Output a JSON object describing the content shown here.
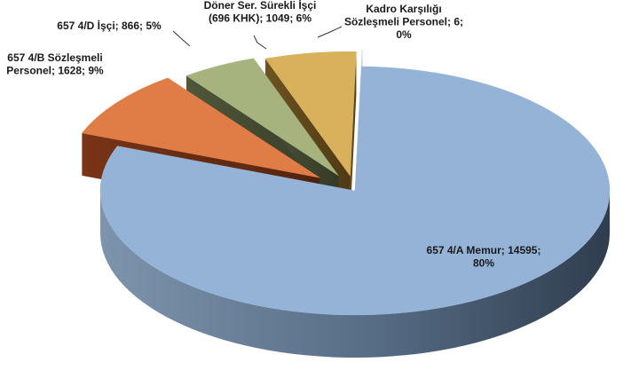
{
  "chart_data": {
    "type": "pie",
    "style": "3d-exploded",
    "legend": "none",
    "slices": [
      {
        "label": "657 4/A Memur",
        "value": 14595,
        "percent": "80%",
        "color": "#95b3d7",
        "label_lines": [
          "657 4/A Memur; 14595;",
          "80%"
        ]
      },
      {
        "label": "657 4/B Sözleşmeli Personel",
        "value": 1628,
        "percent": "9%",
        "color": "#e07c45",
        "label_lines": [
          "657 4/B Sözleşmeli",
          "Personel; 1628; 9%"
        ]
      },
      {
        "label": "657 4/D İşçi",
        "value": 866,
        "percent": "5%",
        "color": "#a6b37f",
        "label_lines": [
          "657 4/D İşçi; 866; 5%"
        ]
      },
      {
        "label": "Döner Ser. Sürekli İşçi (696 KHK)",
        "value": 1049,
        "percent": "6%",
        "color": "#d9b15c",
        "label_lines": [
          "Döner Ser. Sürekli İşçi",
          "(696 KHK); 1049; 6%"
        ]
      },
      {
        "label": "Kadro Karşılığı Sözleşmeli Personel",
        "value": 6,
        "percent": "0%",
        "color": "#cfd8e6",
        "label_lines": [
          "Kadro Karşılığı",
          "Sözleşmeli Personel; 6;",
          "0%"
        ]
      }
    ]
  }
}
